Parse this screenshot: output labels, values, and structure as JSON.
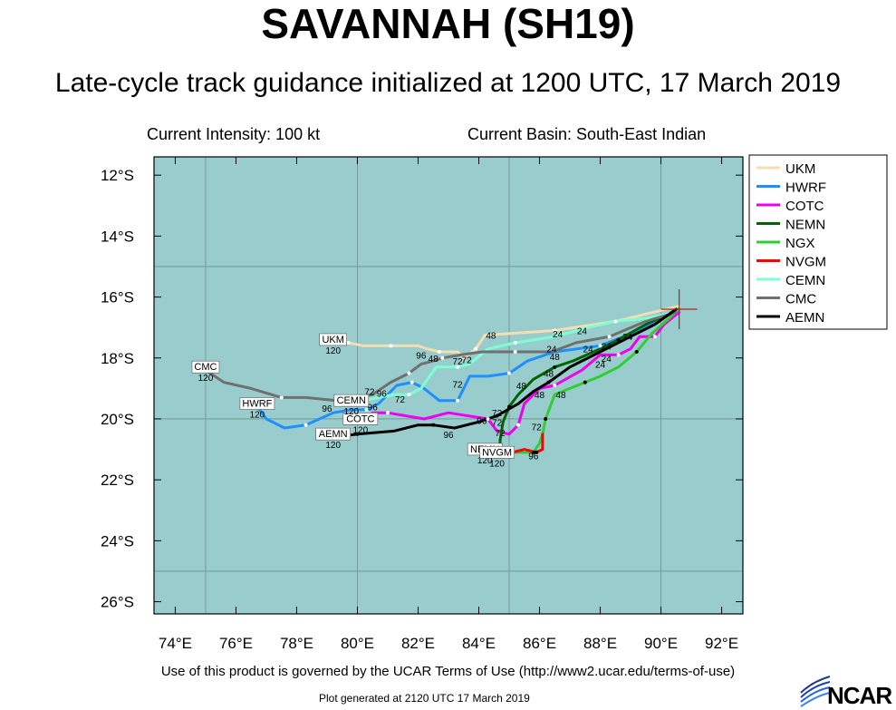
{
  "title": "SAVANNAH (SH19)",
  "subtitle": "Late-cycle track guidance initialized at 1200 UTC, 17 March 2019",
  "current_intensity": "Current Intensity: 100 kt",
  "current_basin": "Current Basin: South-East Indian",
  "terms": "Use of this product is governed by the UCAR Terms of Use (http://www2.ucar.edu/terms-of-use)",
  "generated": "Plot generated at 2120 UTC   17 March 2019",
  "logo_text": "NCAR",
  "colors": {
    "ocean": "#99cccc",
    "grid": "#6f8f8f",
    "storm_marker": "#b22222"
  },
  "map": {
    "lon_ticks": [
      "74°E",
      "76°E",
      "78°E",
      "80°E",
      "82°E",
      "84°E",
      "86°E",
      "88°E",
      "90°E",
      "92°E"
    ],
    "lat_ticks": [
      "12°S",
      "14°S",
      "16°S",
      "18°S",
      "20°S",
      "22°S",
      "24°S",
      "26°S"
    ],
    "lon_range": [
      73.3,
      92.7
    ],
    "lat_range": [
      -26.4,
      -11.4
    ],
    "grid_lons": [
      75,
      80,
      85,
      90
    ],
    "grid_lats": [
      -15,
      -20,
      -25
    ],
    "storm_position": [
      90.6,
      -16.4
    ]
  },
  "legend": [
    {
      "name": "UKM",
      "color": "#f5deb3"
    },
    {
      "name": "HWRF",
      "color": "#1e90ff"
    },
    {
      "name": "COTC",
      "color": "#ee00ee"
    },
    {
      "name": "NEMN",
      "color": "#006400"
    },
    {
      "name": "NGX",
      "color": "#32cd32"
    },
    {
      "name": "NVGM",
      "color": "#ff0000"
    },
    {
      "name": "CEMN",
      "color": "#7fffd4"
    },
    {
      "name": "CMC",
      "color": "#707070"
    },
    {
      "name": "AEMN",
      "color": "#000000"
    }
  ],
  "tracks": [
    {
      "name": "UKM",
      "color": "#f5deb3",
      "label": "UKM",
      "end_label": "120",
      "points": [
        [
          90.6,
          -16.3
        ],
        [
          88.5,
          -16.8
        ],
        [
          86.5,
          -17.1
        ],
        [
          85,
          -17.2
        ],
        [
          84.2,
          -17.25
        ],
        [
          83.9,
          -17.7
        ],
        [
          83.5,
          -18
        ],
        [
          83.3,
          -17.8
        ],
        [
          82.7,
          -17.8
        ],
        [
          82.3,
          -17.7
        ],
        [
          82,
          -17.6
        ],
        [
          81.1,
          -17.6
        ],
        [
          80.4,
          -17.6
        ],
        [
          80.2,
          -17.6
        ],
        [
          79.7,
          -17.5
        ],
        [
          79.2,
          -17.5
        ]
      ]
    },
    {
      "name": "HWRF",
      "color": "#1e90ff",
      "label": "HWRF",
      "end_label": "120",
      "points": [
        [
          90.6,
          -16.4
        ],
        [
          89.3,
          -17.1
        ],
        [
          88,
          -17.6
        ],
        [
          86.5,
          -17.8
        ],
        [
          85.6,
          -18.1
        ],
        [
          85,
          -18.5
        ],
        [
          84.3,
          -18.6
        ],
        [
          83.7,
          -18.6
        ],
        [
          83.3,
          -19.4
        ],
        [
          82.7,
          -19.4
        ],
        [
          82.2,
          -19
        ],
        [
          81.8,
          -18.8
        ],
        [
          81.3,
          -18.9
        ],
        [
          80.7,
          -19.5
        ],
        [
          80.3,
          -19.7
        ],
        [
          79.8,
          -19.7
        ],
        [
          79.2,
          -19.8
        ],
        [
          78.3,
          -20.2
        ],
        [
          77.6,
          -20.3
        ],
        [
          77,
          -20
        ],
        [
          76.7,
          -19.6
        ]
      ]
    },
    {
      "name": "COTC",
      "color": "#ee00ee",
      "label": "COTC",
      "end_label": "120",
      "points": [
        [
          90.6,
          -16.5
        ],
        [
          90.1,
          -16.9
        ],
        [
          89.8,
          -17.3
        ],
        [
          89.3,
          -17.3
        ],
        [
          89,
          -17.7
        ],
        [
          88.6,
          -17.9
        ],
        [
          88,
          -17.9
        ],
        [
          87.4,
          -18.4
        ],
        [
          86.5,
          -18.9
        ],
        [
          86,
          -19
        ],
        [
          85.5,
          -19.5
        ],
        [
          85.3,
          -20.2
        ],
        [
          85,
          -20.5
        ],
        [
          84.6,
          -20.4
        ],
        [
          84.3,
          -20
        ],
        [
          83,
          -19.8
        ],
        [
          82.2,
          -20
        ],
        [
          81,
          -19.8
        ],
        [
          80.5,
          -19.8
        ],
        [
          80.1,
          -20.1
        ]
      ]
    },
    {
      "name": "NEMN",
      "color": "#006400",
      "label": "NEMN",
      "end_label": "120",
      "points": [
        [
          90.6,
          -16.4
        ],
        [
          89.5,
          -16.9
        ],
        [
          88.6,
          -17.4
        ],
        [
          88,
          -17.7
        ],
        [
          87.1,
          -18.1
        ],
        [
          86.5,
          -18.3
        ],
        [
          85.8,
          -18.7
        ],
        [
          85.3,
          -19.2
        ],
        [
          85,
          -19.6
        ],
        [
          84.8,
          -20.1
        ],
        [
          84.7,
          -20.7
        ],
        [
          84.7,
          -21.1
        ],
        [
          84.2,
          -21.1
        ]
      ]
    },
    {
      "name": "NGX",
      "color": "#32cd32",
      "label": "",
      "end_label": "",
      "points": [
        [
          90.6,
          -16.4
        ],
        [
          89.7,
          -17.2
        ],
        [
          89.2,
          -17.8
        ],
        [
          88.6,
          -18.3
        ],
        [
          88,
          -18.6
        ],
        [
          87.5,
          -18.8
        ],
        [
          87,
          -19
        ],
        [
          86.5,
          -19.2
        ],
        [
          86.2,
          -20
        ],
        [
          86.1,
          -20.5
        ],
        [
          86,
          -20.8
        ],
        [
          85.8,
          -21.1
        ],
        [
          85.2,
          -21.1
        ],
        [
          84.3,
          -21.1
        ]
      ]
    },
    {
      "name": "NVGM",
      "color": "#ff0000",
      "label": "NVGM",
      "end_label": "120",
      "points": [
        [
          86.1,
          -20.5
        ],
        [
          86.1,
          -21
        ],
        [
          85.9,
          -21.1
        ],
        [
          85.5,
          -21
        ],
        [
          85.1,
          -21.1
        ],
        [
          84.6,
          -21.2
        ]
      ]
    },
    {
      "name": "CEMN",
      "color": "#7fffd4",
      "label": "CEMN",
      "end_label": "120",
      "points": [
        [
          90.5,
          -16.5
        ],
        [
          89.5,
          -16.7
        ],
        [
          88.5,
          -16.8
        ],
        [
          87.6,
          -17
        ],
        [
          86.5,
          -17.3
        ],
        [
          85.2,
          -17.5
        ],
        [
          84.3,
          -17.7
        ],
        [
          83.7,
          -18.2
        ],
        [
          83.3,
          -18.3
        ],
        [
          82.6,
          -18.3
        ],
        [
          82.1,
          -19
        ],
        [
          81.7,
          -19.2
        ],
        [
          81.2,
          -19.2
        ],
        [
          80.7,
          -19.3
        ],
        [
          80.2,
          -19.4
        ],
        [
          79.8,
          -19.5
        ]
      ]
    },
    {
      "name": "CMC",
      "color": "#707070",
      "label": "CMC",
      "end_label": "120",
      "points": [
        [
          90.5,
          -16.5
        ],
        [
          89.5,
          -16.8
        ],
        [
          88.3,
          -17.3
        ],
        [
          87.2,
          -17.5
        ],
        [
          86.4,
          -17.8
        ],
        [
          85.2,
          -17.8
        ],
        [
          84.1,
          -17.8
        ],
        [
          83.4,
          -17.9
        ],
        [
          82.8,
          -18
        ],
        [
          82.5,
          -18.1
        ],
        [
          82.1,
          -18.2
        ],
        [
          81.7,
          -18.5
        ],
        [
          81.1,
          -18.8
        ],
        [
          80.5,
          -19.2
        ],
        [
          79.9,
          -19.3
        ],
        [
          79.3,
          -19.4
        ],
        [
          78.3,
          -19.3
        ],
        [
          77.5,
          -19.3
        ],
        [
          76.5,
          -19
        ],
        [
          75.6,
          -18.8
        ],
        [
          75,
          -18.4
        ]
      ]
    },
    {
      "name": "AEMN",
      "color": "#000000",
      "label": "AEMN",
      "end_label": "120",
      "points": [
        [
          90.5,
          -16.4
        ],
        [
          89.8,
          -16.9
        ],
        [
          89,
          -17.3
        ],
        [
          88,
          -17.8
        ],
        [
          87,
          -18.3
        ],
        [
          86.3,
          -18.8
        ],
        [
          85.8,
          -19.1
        ],
        [
          85.3,
          -19.5
        ],
        [
          84.6,
          -19.9
        ],
        [
          84,
          -20.1
        ],
        [
          83.2,
          -20.3
        ],
        [
          82.5,
          -20.2
        ],
        [
          82,
          -20.2
        ],
        [
          81.2,
          -20.4
        ],
        [
          80,
          -20.5
        ],
        [
          79.2,
          -20.6
        ]
      ]
    }
  ],
  "time_labels": [
    {
      "text": "24",
      "lon": 86.6,
      "lat": -17.2
    },
    {
      "text": "24",
      "lon": 87.4,
      "lat": -17.1
    },
    {
      "text": "24",
      "lon": 86.4,
      "lat": -17.7
    },
    {
      "text": "24",
      "lon": 87.6,
      "lat": -17.7
    },
    {
      "text": "24",
      "lon": 88.2,
      "lat": -17.6
    },
    {
      "text": "24",
      "lon": 88.9,
      "lat": -17.3
    },
    {
      "text": "24",
      "lon": 88.2,
      "lat": -18.0
    },
    {
      "text": "24",
      "lon": 88.0,
      "lat": -18.2
    },
    {
      "text": "48",
      "lon": 84.4,
      "lat": -17.25
    },
    {
      "text": "48",
      "lon": 82.5,
      "lat": -18.0
    },
    {
      "text": "48",
      "lon": 86.5,
      "lat": -17.95
    },
    {
      "text": "48",
      "lon": 86.3,
      "lat": -18.5
    },
    {
      "text": "48",
      "lon": 85.4,
      "lat": -18.9
    },
    {
      "text": "48",
      "lon": 86.7,
      "lat": -19.2
    },
    {
      "text": "48",
      "lon": 86.0,
      "lat": -19.2
    },
    {
      "text": "72",
      "lon": 83.3,
      "lat": -18.1
    },
    {
      "text": "72",
      "lon": 83.6,
      "lat": -18.05
    },
    {
      "text": "72",
      "lon": 83.3,
      "lat": -18.85
    },
    {
      "text": "72",
      "lon": 81.4,
      "lat": -19.35
    },
    {
      "text": "72",
      "lon": 80.4,
      "lat": -19.1
    },
    {
      "text": "72",
      "lon": 84.6,
      "lat": -19.8
    },
    {
      "text": "72",
      "lon": 84.6,
      "lat": -20.1
    },
    {
      "text": "72",
      "lon": 84.7,
      "lat": -20.45
    },
    {
      "text": "72",
      "lon": 85.9,
      "lat": -20.25
    },
    {
      "text": "96",
      "lon": 82.1,
      "lat": -17.9
    },
    {
      "text": "96",
      "lon": 80.8,
      "lat": -19.15
    },
    {
      "text": "96",
      "lon": 80.5,
      "lat": -19.6
    },
    {
      "text": "96",
      "lon": 79.0,
      "lat": -19.65
    },
    {
      "text": "96",
      "lon": 83.0,
      "lat": -20.5
    },
    {
      "text": "96",
      "lon": 84.1,
      "lat": -20.05
    },
    {
      "text": "96",
      "lon": 84.3,
      "lat": -21.15
    },
    {
      "text": "96",
      "lon": 85.8,
      "lat": -21.2
    }
  ]
}
